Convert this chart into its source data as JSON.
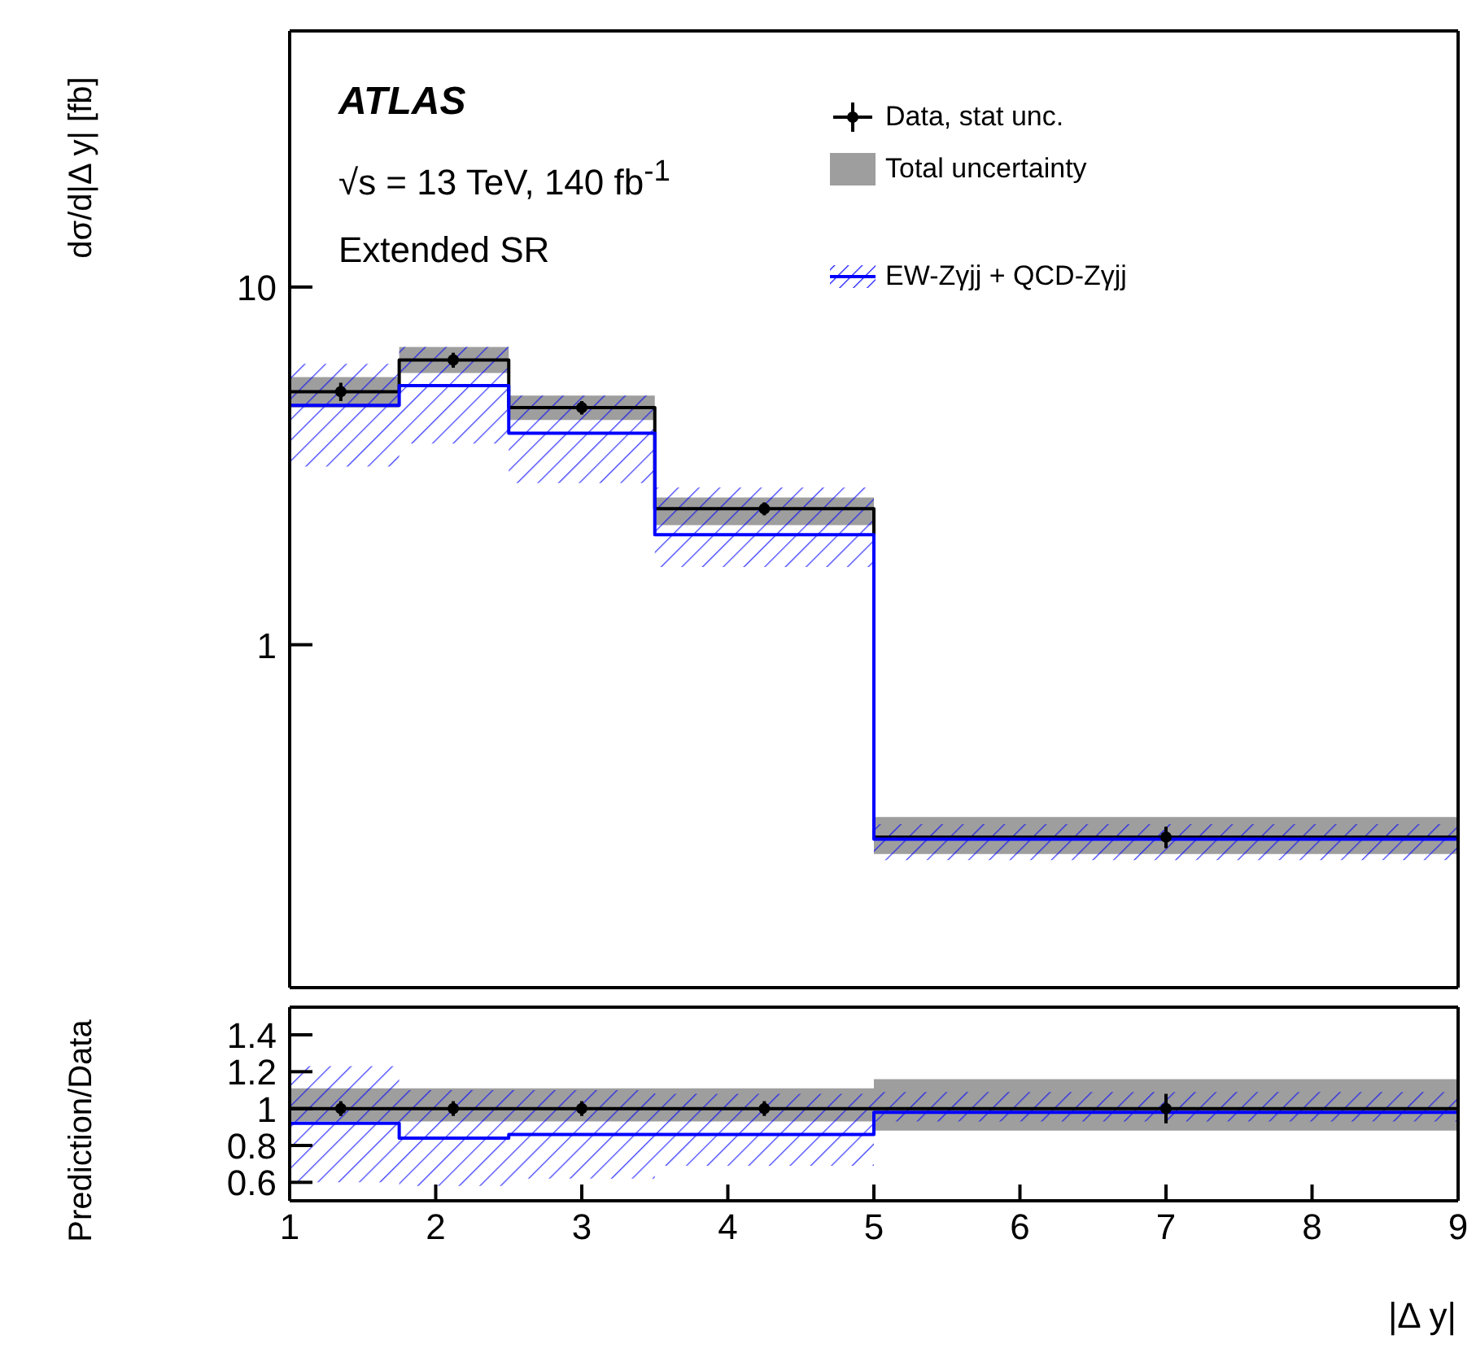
{
  "chart_data": [
    {
      "type": "step",
      "ylabel": "dσ/d|Δ y| [fb]",
      "annotations": [
        "ATLAS",
        "√s = 13 TeV, 140 fb$^{-1}$",
        "Extended SR"
      ],
      "xlim": [
        1,
        9
      ],
      "xticks": [
        1,
        2,
        3,
        4,
        5,
        6,
        7,
        8,
        9
      ],
      "ylim": [
        0.11,
        52
      ],
      "yticks": [
        1,
        10
      ],
      "log": true,
      "tick_labels": "y",
      "legend": "top right",
      "line_style": "solid",
      "series": [
        {
          "name": "Total uncertainty",
          "color": "#000000",
          "x": [
            1,
            1.75,
            2.5,
            3.5,
            5,
            9
          ],
          "values": [
            5.1,
            6.25,
            4.6,
            2.4,
            0.29,
            0.29
          ],
          "lower": [
            4.6,
            5.75,
            4.25,
            2.16,
            0.26,
            0.26
          ],
          "upper": [
            5.6,
            6.8,
            4.97,
            2.58,
            0.33,
            0.33
          ]
        },
        {
          "name": "EW-Zγjj + QCD-Zγjj",
          "color": "#0000ff",
          "x": [
            1,
            1.75,
            2.5,
            3.5,
            5,
            9
          ],
          "values": [
            4.67,
            5.3,
            3.9,
            2.03,
            0.286,
            0.286
          ],
          "lower": [
            3.15,
            3.65,
            2.83,
            1.65,
            0.25,
            0.25
          ],
          "upper": [
            6.1,
            6.8,
            4.97,
            2.75,
            0.315,
            0.315
          ]
        },
        {
          "name": "Data, stat unc.",
          "type": "scatter",
          "marker": "circle",
          "color": "#000000",
          "x": [
            1.35,
            2.12,
            3.0,
            4.25,
            7.0
          ],
          "values": [
            5.1,
            6.25,
            4.6,
            2.4,
            0.29
          ],
          "errors": [
            0.3,
            0.3,
            0.2,
            0.1,
            0.02
          ]
        }
      ]
    },
    {
      "type": "step",
      "ylabel": "Prediction/Data",
      "xlabel": "|Δ y|",
      "xlim": [
        1,
        9
      ],
      "xticks": [
        1,
        2,
        3,
        4,
        5,
        6,
        7,
        8,
        9
      ],
      "ylim": [
        0.5,
        1.55
      ],
      "yticks": [
        0.6,
        0.8,
        1,
        1.2,
        1.4
      ],
      "line_style": "solid",
      "series": [
        {
          "color": "#000000",
          "x": [
            1,
            1.75,
            2.5,
            3.5,
            5,
            9
          ],
          "values": [
            1,
            1,
            1,
            1,
            1,
            1
          ],
          "lower": [
            0.93,
            0.93,
            0.93,
            0.93,
            0.88,
            0.88
          ],
          "upper": [
            1.11,
            1.11,
            1.11,
            1.11,
            1.16,
            1.16
          ]
        },
        {
          "color": "#0000ff",
          "x": [
            1,
            1.75,
            2.5,
            3.5,
            5,
            9
          ],
          "values": [
            0.92,
            0.84,
            0.86,
            0.86,
            0.98,
            0.98
          ],
          "lower": [
            0.6,
            0.58,
            0.62,
            0.69,
            0.93,
            0.93
          ],
          "upper": [
            1.23,
            1.1,
            1.1,
            1.08,
            1.09,
            1.09
          ]
        },
        {
          "type": "scatter",
          "marker": "circle",
          "color": "#000000",
          "x": [
            1.35,
            2.12,
            3.0,
            4.25,
            7.0
          ],
          "values": [
            1,
            1,
            1,
            1,
            1
          ],
          "errors": [
            0.04,
            0.04,
            0.04,
            0.04,
            0.08
          ]
        }
      ]
    }
  ]
}
